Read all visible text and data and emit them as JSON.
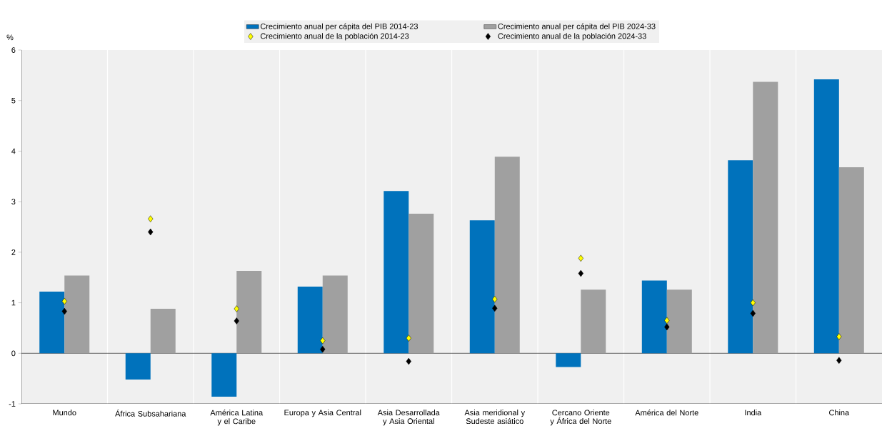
{
  "chart_data": {
    "type": "bar",
    "ylabel": "%",
    "categories": [
      "Mundo",
      "África Subsahariana",
      "América Latina y el Caribe",
      "Europa y Asia Central",
      "Asia Desarrollada y Asia Oriental",
      "Asia meridional y Sudeste asiático",
      "Cercano Oriente y África del Norte",
      "América del Norte",
      "India",
      "China"
    ],
    "series": [
      {
        "name": "Crecimiento anual per cápita del PIB 2014-23",
        "color": "#0072bc",
        "values": [
          1.22,
          -0.52,
          -0.86,
          1.32,
          3.21,
          2.63,
          -0.27,
          1.44,
          3.82,
          5.42
        ]
      },
      {
        "name": "Crecimiento anual per cápita del PIB 2024-33",
        "color": "#a0a0a0",
        "values": [
          1.54,
          0.88,
          1.63,
          1.54,
          2.76,
          3.89,
          1.26,
          1.26,
          5.37,
          3.68
        ]
      },
      {
        "name": "Crecimiento anual de la población 2014-23",
        "type": "scatter",
        "color": "#ffff00",
        "values": [
          1.03,
          2.66,
          0.88,
          0.25,
          0.3,
          1.07,
          1.88,
          0.65,
          1.0,
          0.33
        ]
      },
      {
        "name": "Crecimiento anual de la población 2024-33",
        "type": "scatter",
        "color": "#000000",
        "values": [
          0.83,
          2.4,
          0.64,
          0.08,
          -0.16,
          0.89,
          1.58,
          0.52,
          0.79,
          -0.14
        ]
      }
    ],
    "ylim": [
      -1,
      6
    ],
    "yticks": [
      -1,
      0,
      1,
      2,
      3,
      4,
      5,
      6
    ],
    "legend": "top",
    "marker": "diamond",
    "grid": false
  }
}
